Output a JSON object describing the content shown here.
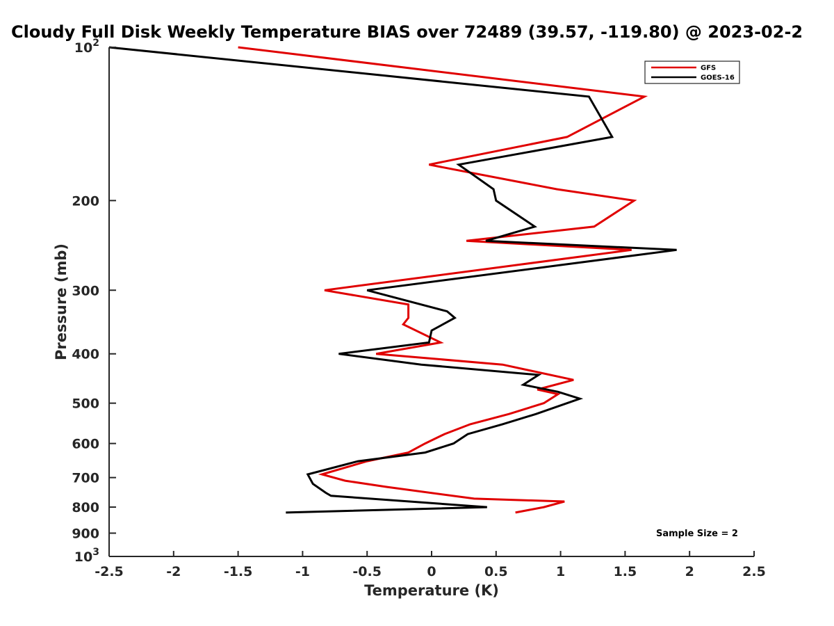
{
  "chart_data": {
    "type": "line",
    "title": "Cloudy Full Disk Weekly Temperature BIAS over 72489 (39.57, -119.80) @ 2023-02-2",
    "xlabel": "Temperature (K)",
    "ylabel": "Pressure (mb)",
    "xlim": [
      -2.5,
      2.5
    ],
    "ylim": [
      100,
      1000
    ],
    "y_scale": "log",
    "y_reversed": true,
    "x_ticks": [
      -2.5,
      -2,
      -1.5,
      -1,
      -0.5,
      0,
      0.5,
      1,
      1.5,
      2,
      2.5
    ],
    "x_tick_labels": [
      "-2.5",
      "-2",
      "-1.5",
      "-1",
      "-0.5",
      "0",
      "0.5",
      "1",
      "1.5",
      "2",
      "2.5"
    ],
    "y_ticks": [
      100,
      200,
      300,
      400,
      500,
      600,
      700,
      800,
      900,
      1000
    ],
    "y_tick_labels": [
      {
        "base": "10",
        "exp": "2"
      },
      {
        "base": "200"
      },
      {
        "base": "300"
      },
      {
        "base": "400"
      },
      {
        "base": "500"
      },
      {
        "base": "600"
      },
      {
        "base": "700"
      },
      {
        "base": "800"
      },
      {
        "base": "900"
      },
      {
        "base": "10",
        "exp": "3"
      }
    ],
    "grid": false,
    "legend_position": "top-right",
    "annotation": "Sample Size = 2",
    "series": [
      {
        "name": "GFS",
        "color": "#e00000",
        "points": [
          [
            -1.5,
            100
          ],
          [
            1.65,
            125
          ],
          [
            1.05,
            150
          ],
          [
            -0.02,
            170
          ],
          [
            0.97,
            190
          ],
          [
            1.57,
            200
          ],
          [
            1.26,
            225
          ],
          [
            0.27,
            240
          ],
          [
            1.55,
            250
          ],
          [
            -0.83,
            300
          ],
          [
            -0.18,
            320
          ],
          [
            -0.18,
            340
          ],
          [
            -0.22,
            350
          ],
          [
            0.07,
            380
          ],
          [
            -0.43,
            400
          ],
          [
            0.55,
            420
          ],
          [
            1.1,
            450
          ],
          [
            0.82,
            470
          ],
          [
            0.98,
            480
          ],
          [
            0.87,
            500
          ],
          [
            0.6,
            525
          ],
          [
            0.3,
            550
          ],
          [
            0.1,
            575
          ],
          [
            -0.05,
            600
          ],
          [
            -0.18,
            625
          ],
          [
            -0.5,
            650
          ],
          [
            -0.85,
            690
          ],
          [
            -0.67,
            710
          ],
          [
            -0.35,
            730
          ],
          [
            0.33,
            770
          ],
          [
            1.03,
            780
          ],
          [
            0.87,
            800
          ],
          [
            0.65,
            820
          ]
        ]
      },
      {
        "name": "GOES-16",
        "color": "#000000",
        "points": [
          [
            -2.5,
            100
          ],
          [
            1.22,
            125
          ],
          [
            1.4,
            150
          ],
          [
            0.21,
            170
          ],
          [
            0.48,
            190
          ],
          [
            0.5,
            200
          ],
          [
            0.8,
            225
          ],
          [
            0.42,
            240
          ],
          [
            1.9,
            250
          ],
          [
            -0.5,
            300
          ],
          [
            0.12,
            330
          ],
          [
            0.18,
            340
          ],
          [
            0.0,
            360
          ],
          [
            -0.02,
            380
          ],
          [
            -0.72,
            400
          ],
          [
            -0.08,
            420
          ],
          [
            0.83,
            440
          ],
          [
            0.71,
            460
          ],
          [
            0.98,
            475
          ],
          [
            1.15,
            490
          ],
          [
            0.81,
            525
          ],
          [
            0.55,
            550
          ],
          [
            0.28,
            575
          ],
          [
            0.17,
            600
          ],
          [
            -0.05,
            625
          ],
          [
            -0.57,
            650
          ],
          [
            -0.96,
            690
          ],
          [
            -0.92,
            720
          ],
          [
            -0.82,
            750
          ],
          [
            -0.78,
            760
          ],
          [
            0.43,
            800
          ],
          [
            -1.13,
            820
          ]
        ]
      }
    ]
  }
}
